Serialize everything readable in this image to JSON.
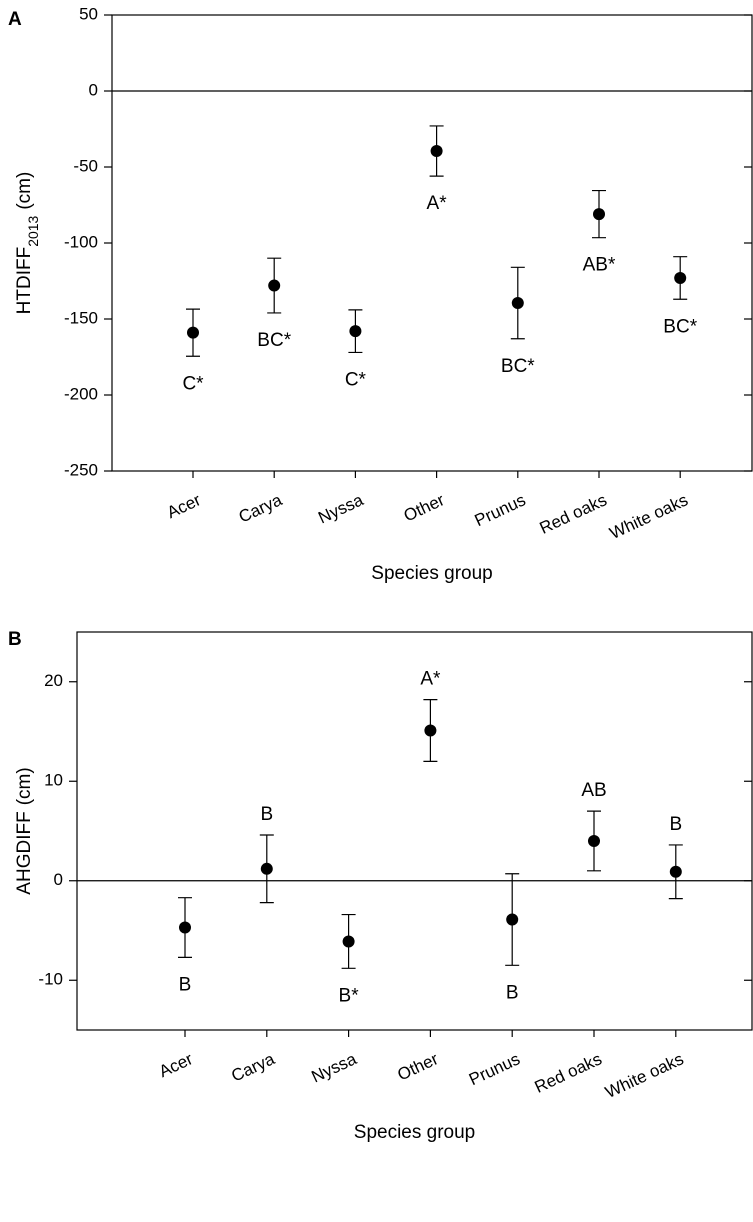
{
  "chart_data": [
    {
      "type": "scatter",
      "panel_label": "A",
      "ylabel_main": "HTDIFF",
      "ylabel_sub": "2013",
      "ylabel_unit": "(cm)",
      "xlabel": "Species group",
      "categories": [
        "Acer",
        "Carya",
        "Nyssa",
        "Other",
        "Prunus",
        "Red oaks",
        "White oaks"
      ],
      "values": [
        -159,
        -128,
        -158,
        -39.5,
        -139.5,
        -81,
        -123
      ],
      "errors": [
        15.5,
        18,
        14,
        16.5,
        23.5,
        15.5,
        14
      ],
      "annotations": [
        "C*",
        "BC*",
        "C*",
        "A*",
        "BC*",
        "AB*",
        "BC*"
      ],
      "annotation_side": [
        "below",
        "below",
        "below",
        "below",
        "below",
        "below",
        "below"
      ],
      "color": "#000000",
      "hline": 0,
      "ylim": [
        -250,
        50
      ],
      "yticks": [
        -250,
        -200,
        -150,
        -100,
        -50,
        0,
        50
      ]
    },
    {
      "type": "scatter",
      "panel_label": "B",
      "ylabel_main": "AHGDIFF",
      "ylabel_unit": "(cm)",
      "xlabel": "Species group",
      "categories": [
        "Acer",
        "Carya",
        "Nyssa",
        "Other",
        "Prunus",
        "Red oaks",
        "White oaks"
      ],
      "values": [
        -4.7,
        1.2,
        -6.1,
        15.1,
        -3.9,
        4.0,
        0.9
      ],
      "errors": [
        3.0,
        3.4,
        2.7,
        3.1,
        4.6,
        3.0,
        2.7
      ],
      "annotations": [
        "B",
        "B",
        "B*",
        "A*",
        "B",
        "AB",
        "B"
      ],
      "annotation_side": [
        "below",
        "above",
        "below",
        "above",
        "below",
        "above",
        "above"
      ],
      "color": "#000000",
      "hline": 0,
      "ylim": [
        -15,
        25
      ],
      "yticks": [
        -10,
        0,
        10,
        20
      ]
    }
  ]
}
